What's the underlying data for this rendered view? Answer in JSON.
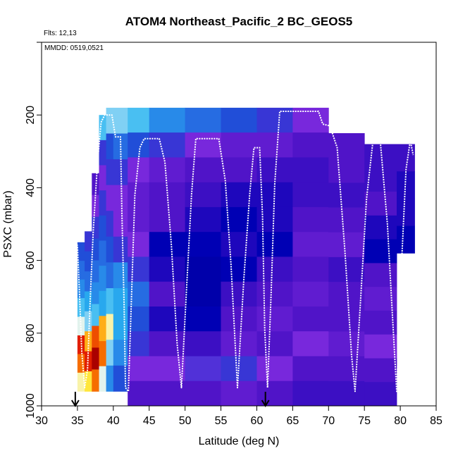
{
  "chart_data": {
    "type": "heatmap",
    "title": "ATOM4 Northeast_Pacific_2 BC_GEOS5",
    "notes": [
      "Flts: 12,13",
      "MMDD: 0519,0521"
    ],
    "xlabel": "Latitude (deg N)",
    "ylabel": "PSXC (mbar)",
    "xlim": [
      30,
      85
    ],
    "ylim": [
      1000,
      0
    ],
    "x_ticks": [
      "30",
      "35",
      "40",
      "45",
      "50",
      "55",
      "60",
      "65",
      "70",
      "75",
      "80",
      "85"
    ],
    "y_ticks": [
      "200",
      "400",
      "600",
      "800",
      "1000"
    ],
    "grid": false,
    "flight_track_color": "#ffffff",
    "arrow_markers_lat": [
      34.7,
      61.2
    ],
    "columns": [
      {
        "lat0": 35.0,
        "lat1": 36.0,
        "p_top": 550,
        "p_bottom": 960,
        "v": [
          0.35,
          0.4,
          0.45,
          0.55,
          0.7,
          0.95,
          0.9,
          0.75
        ]
      },
      {
        "lat0": 36.0,
        "lat1": 37.0,
        "p_top": 520,
        "p_bottom": 960,
        "v": [
          0.3,
          0.35,
          0.4,
          0.5,
          0.6,
          0.85,
          0.95,
          0.8
        ]
      },
      {
        "lat0": 37.0,
        "lat1": 38.0,
        "p_top": 360,
        "p_bottom": 960,
        "v": [
          0.2,
          0.25,
          0.3,
          0.35,
          0.4,
          0.45,
          0.55,
          0.92,
          1.0,
          0.9
        ]
      },
      {
        "lat0": 38.0,
        "lat1": 39.0,
        "p_top": 200,
        "p_bottom": 960,
        "v": [
          0.55,
          0.3,
          0.25,
          0.3,
          0.35,
          0.4,
          0.45,
          0.5,
          0.85,
          0.9,
          0.7
        ]
      },
      {
        "lat0": 39.0,
        "lat1": 40.0,
        "p_top": 180,
        "p_bottom": 960,
        "v": [
          0.6,
          0.35,
          0.3,
          0.25,
          0.3,
          0.35,
          0.4,
          0.55,
          0.75,
          0.6,
          0.45
        ]
      },
      {
        "lat0": 40.0,
        "lat1": 42.0,
        "p_top": 180,
        "p_bottom": 960,
        "v": [
          0.6,
          0.4,
          0.3,
          0.25,
          0.25,
          0.3,
          0.45,
          0.5,
          0.5,
          0.45,
          0.35
        ]
      },
      {
        "lat0": 42.0,
        "lat1": 45.0,
        "p_top": 180,
        "p_bottom": 1000,
        "v": [
          0.55,
          0.35,
          0.25,
          0.22,
          0.22,
          0.25,
          0.3,
          0.4,
          0.35,
          0.3,
          0.25,
          0.2
        ]
      },
      {
        "lat0": 45.0,
        "lat1": 50.0,
        "p_top": 180,
        "p_bottom": 1000,
        "v": [
          0.45,
          0.3,
          0.22,
          0.2,
          0.2,
          0.12,
          0.15,
          0.2,
          0.15,
          0.2,
          0.25,
          0.2
        ]
      },
      {
        "lat0": 50.0,
        "lat1": 55.0,
        "p_top": 180,
        "p_bottom": 1000,
        "v": [
          0.4,
          0.25,
          0.2,
          0.18,
          0.15,
          0.12,
          0.1,
          0.1,
          0.12,
          0.18,
          0.28,
          0.2
        ]
      },
      {
        "lat0": 55.0,
        "lat1": 60.0,
        "p_top": 180,
        "p_bottom": 1000,
        "v": [
          0.35,
          0.22,
          0.2,
          0.15,
          0.12,
          0.15,
          0.12,
          0.18,
          0.2,
          0.22,
          0.3,
          0.22
        ]
      },
      {
        "lat0": 60.0,
        "lat1": 65.0,
        "p_top": 180,
        "p_bottom": 1000,
        "v": [
          0.3,
          0.22,
          0.18,
          0.15,
          0.15,
          0.12,
          0.18,
          0.2,
          0.22,
          0.2,
          0.25,
          0.2
        ]
      },
      {
        "lat0": 65.0,
        "lat1": 70.0,
        "p_top": 180,
        "p_bottom": 1000,
        "v": [
          0.25,
          0.2,
          0.18,
          0.18,
          0.2,
          0.22,
          0.2,
          0.22,
          0.2,
          0.25,
          0.2,
          0.18
        ]
      },
      {
        "lat0": 70.0,
        "lat1": 75.0,
        "p_top": 250,
        "p_bottom": 1000,
        "v": [
          0.2,
          0.2,
          0.18,
          0.2,
          0.22,
          0.18,
          0.2,
          0.2,
          0.22,
          0.2,
          0.18
        ]
      },
      {
        "lat0": 75.0,
        "lat1": 79.5,
        "p_top": 280,
        "p_bottom": 1000,
        "v": [
          0.18,
          0.18,
          0.2,
          0.15,
          0.12,
          0.2,
          0.22,
          0.2,
          0.25,
          0.2,
          0.18
        ]
      },
      {
        "lat0": 79.5,
        "lat1": 82.0,
        "p_top": 280,
        "p_bottom": 580,
        "v": [
          0.18,
          0.15,
          0.15,
          0.12
        ]
      }
    ],
    "flight_track": [
      [
        34.8,
        550
      ],
      [
        35.0,
        560
      ],
      [
        35.3,
        700
      ],
      [
        35.6,
        850
      ],
      [
        36.0,
        950
      ],
      [
        36.4,
        900
      ],
      [
        36.8,
        700
      ],
      [
        37.2,
        520
      ],
      [
        37.8,
        330
      ],
      [
        38.3,
        220
      ],
      [
        38.8,
        200
      ],
      [
        39.8,
        200
      ],
      [
        40.3,
        260
      ],
      [
        41.0,
        260
      ],
      [
        41.2,
        470
      ],
      [
        41.5,
        720
      ],
      [
        41.7,
        950
      ],
      [
        42.1,
        960
      ],
      [
        42.5,
        720
      ],
      [
        43.0,
        420
      ],
      [
        43.7,
        290
      ],
      [
        44.3,
        265
      ],
      [
        46.4,
        265
      ],
      [
        47.2,
        330
      ],
      [
        48.1,
        560
      ],
      [
        48.9,
        830
      ],
      [
        49.5,
        950
      ],
      [
        50.2,
        680
      ],
      [
        50.9,
        420
      ],
      [
        51.5,
        265
      ],
      [
        54.7,
        265
      ],
      [
        55.6,
        380
      ],
      [
        56.4,
        610
      ],
      [
        57.3,
        950
      ],
      [
        58.2,
        650
      ],
      [
        59.0,
        420
      ],
      [
        59.6,
        290
      ],
      [
        60.4,
        290
      ],
      [
        60.8,
        480
      ],
      [
        61.1,
        790
      ],
      [
        61.5,
        950
      ],
      [
        62.0,
        690
      ],
      [
        62.5,
        390
      ],
      [
        63.2,
        190
      ],
      [
        68.6,
        190
      ],
      [
        69.2,
        225
      ],
      [
        70.2,
        230
      ],
      [
        71.2,
        290
      ],
      [
        72.3,
        580
      ],
      [
        73.2,
        860
      ],
      [
        73.7,
        960
      ],
      [
        74.4,
        730
      ],
      [
        75.3,
        430
      ],
      [
        76.2,
        270
      ],
      [
        77.2,
        270
      ],
      [
        78.2,
        500
      ],
      [
        78.9,
        750
      ],
      [
        79.5,
        960
      ],
      [
        80.2,
        600
      ],
      [
        80.8,
        350
      ],
      [
        81.4,
        270
      ],
      [
        81.8,
        310
      ]
    ]
  }
}
